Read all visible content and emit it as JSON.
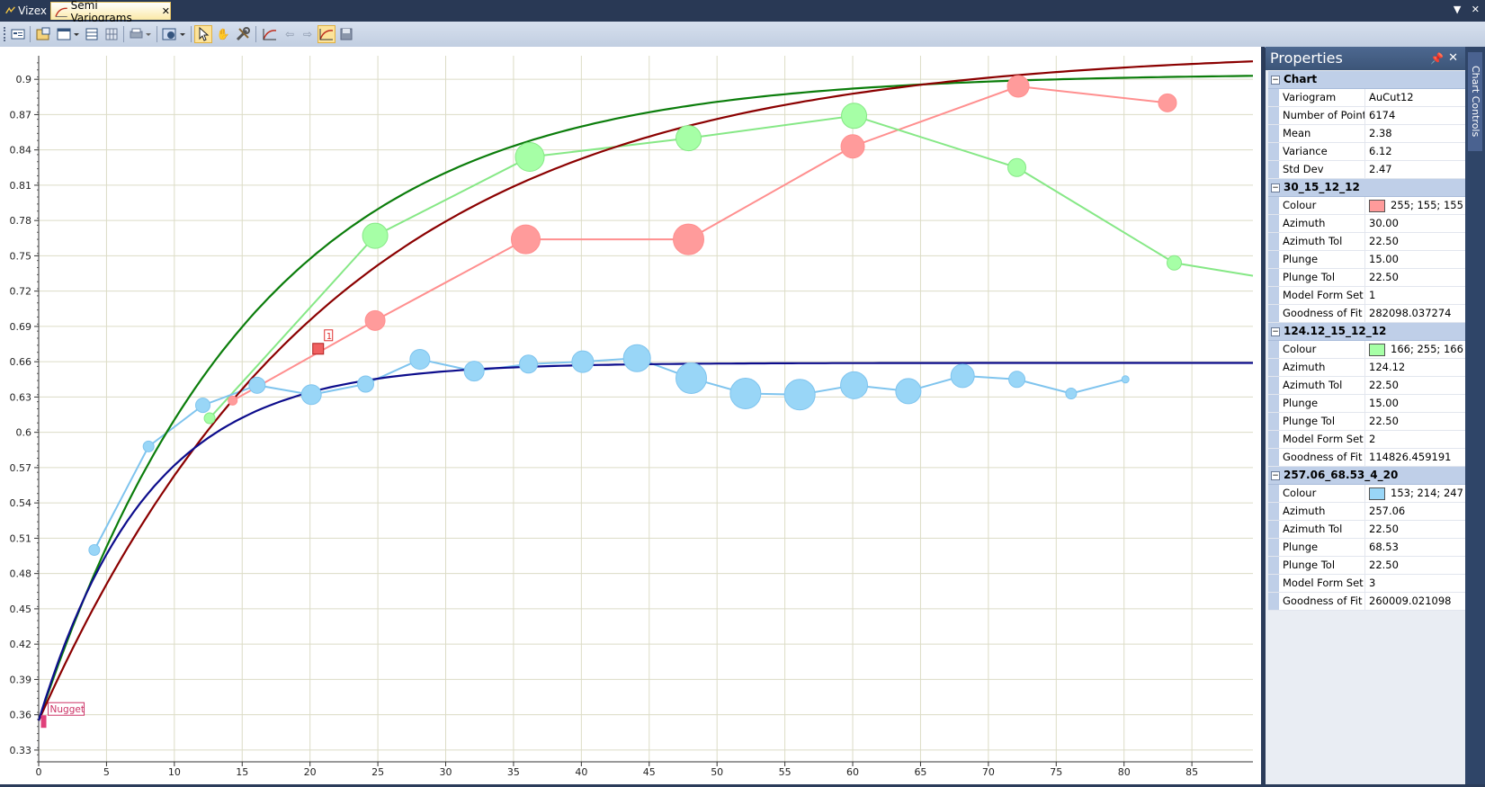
{
  "tabs": [
    {
      "label": "Vizex",
      "icon": "vizex-icon"
    },
    {
      "label": "Semi Variograms",
      "icon": "variogram-icon",
      "active": true
    }
  ],
  "toolbar": {
    "tools": [
      "properties-icon",
      "layout-icon",
      "list-icon",
      "grid-icon",
      "print-icon",
      "export-icon",
      "select-pointer-icon",
      "pan-hand-icon",
      "tools-icon",
      "variogram-curve-icon",
      "back-arrow-icon",
      "forward-arrow-icon",
      "model-fit-icon",
      "save-icon"
    ]
  },
  "properties": {
    "title": "Properties",
    "side_tab": "Chart Controls",
    "sections": [
      {
        "name": "Chart",
        "rows": [
          {
            "label": "Variogram",
            "value": "AuCut12"
          },
          {
            "label": "Number of Points",
            "value": "6174"
          },
          {
            "label": "Mean",
            "value": "2.38"
          },
          {
            "label": "Variance",
            "value": "6.12"
          },
          {
            "label": "Std Dev",
            "value": "2.47"
          }
        ]
      },
      {
        "name": "30_15_12_12",
        "rows": [
          {
            "label": "Colour",
            "value": "255; 155; 155",
            "swatch": "#ff9b9b"
          },
          {
            "label": "Azimuth",
            "value": "30.00"
          },
          {
            "label": "Azimuth Tol",
            "value": "22.50"
          },
          {
            "label": "Plunge",
            "value": "15.00"
          },
          {
            "label": "Plunge Tol",
            "value": "22.50"
          },
          {
            "label": "Model Form Set T",
            "value": "1"
          },
          {
            "label": "Goodness of Fit (I",
            "value": "282098.037274"
          }
        ]
      },
      {
        "name": "124.12_15_12_12",
        "rows": [
          {
            "label": "Colour",
            "value": "166; 255; 166",
            "swatch": "#a6ffa6"
          },
          {
            "label": "Azimuth",
            "value": "124.12"
          },
          {
            "label": "Azimuth Tol",
            "value": "22.50"
          },
          {
            "label": "Plunge",
            "value": "15.00"
          },
          {
            "label": "Plunge Tol",
            "value": "22.50"
          },
          {
            "label": "Model Form Set T",
            "value": "2"
          },
          {
            "label": "Goodness of Fit (I",
            "value": "114826.459191"
          }
        ]
      },
      {
        "name": "257.06_68.53_4_20",
        "rows": [
          {
            "label": "Colour",
            "value": "153; 214; 247",
            "swatch": "#99d6f7"
          },
          {
            "label": "Azimuth",
            "value": "257.06"
          },
          {
            "label": "Azimuth Tol",
            "value": "22.50"
          },
          {
            "label": "Plunge",
            "value": "68.53"
          },
          {
            "label": "Plunge Tol",
            "value": "22.50"
          },
          {
            "label": "Model Form Set T",
            "value": "3"
          },
          {
            "label": "Goodness of Fit (I",
            "value": "260009.021098"
          }
        ]
      }
    ]
  },
  "chart_data": {
    "type": "scatter",
    "xlim": [
      0,
      89.5
    ],
    "ylim": [
      0.32,
      0.92
    ],
    "x_ticks": [
      0,
      5,
      10,
      15,
      20,
      25,
      30,
      35,
      40,
      45,
      50,
      55,
      60,
      65,
      70,
      75,
      80,
      85
    ],
    "y_ticks": [
      "0.33",
      "0.36",
      "0.39",
      "0.42",
      "0.45",
      "0.48",
      "0.51",
      "0.54",
      "0.57",
      "0.6",
      "0.63",
      "0.66",
      "0.69",
      "0.72",
      "0.75",
      "0.78",
      "0.81",
      "0.84",
      "0.87",
      "0.9"
    ],
    "grid": true,
    "series": [
      {
        "color": "#ff9b9b",
        "stroke": "#ff8f8f",
        "points": [
          [
            14.3,
            0.627,
            5
          ],
          [
            24.8,
            0.695,
            11
          ],
          [
            35.9,
            0.764,
            16
          ],
          [
            47.9,
            0.764,
            17
          ],
          [
            60,
            0.843,
            13
          ],
          [
            72.2,
            0.894,
            12
          ],
          [
            83.2,
            0.88,
            10
          ]
        ]
      },
      {
        "color": "#a6ffa6",
        "stroke": "#86e886",
        "points": [
          [
            12.6,
            0.612,
            6
          ],
          [
            24.8,
            0.767,
            14
          ],
          [
            36.2,
            0.834,
            16
          ],
          [
            47.9,
            0.85,
            14
          ],
          [
            60.1,
            0.869,
            14
          ],
          [
            72.1,
            0.825,
            10
          ],
          [
            83.7,
            0.744,
            8
          ],
          [
            89.5,
            0.733,
            0
          ]
        ]
      },
      {
        "color": "#99d6f7",
        "stroke": "#7fc4ee",
        "points": [
          [
            4.1,
            0.5,
            6
          ],
          [
            8.1,
            0.588,
            6
          ],
          [
            12.1,
            0.623,
            8
          ],
          [
            16.1,
            0.64,
            9
          ],
          [
            20.1,
            0.632,
            11
          ],
          [
            24.1,
            0.641,
            9
          ],
          [
            28.1,
            0.662,
            11
          ],
          [
            32.1,
            0.652,
            11
          ],
          [
            36.1,
            0.658,
            10
          ],
          [
            40.1,
            0.66,
            12
          ],
          [
            44.1,
            0.663,
            15
          ],
          [
            48.1,
            0.646,
            17
          ],
          [
            52.1,
            0.633,
            17
          ],
          [
            56.1,
            0.632,
            17
          ],
          [
            60.1,
            0.64,
            15
          ],
          [
            64.1,
            0.635,
            14
          ],
          [
            68.1,
            0.648,
            13
          ],
          [
            72.1,
            0.645,
            9
          ],
          [
            76.1,
            0.633,
            6
          ],
          [
            80.1,
            0.645,
            4
          ]
        ]
      }
    ],
    "models": [
      {
        "color": "#0b7d0b",
        "nugget": 0.355,
        "sill": 0.905,
        "range": 48
      },
      {
        "color": "#8b0000",
        "nugget": 0.355,
        "sill": 0.925,
        "range": 66
      },
      {
        "color": "#0d0d8c",
        "nugget": 0.355,
        "sill": 0.659,
        "range": 24
      }
    ],
    "annotations": [
      {
        "text": "Nugget",
        "x": 0.3,
        "y": 0.355,
        "color": "#cc3366"
      },
      {
        "text": "1",
        "x": 20.6,
        "y": 0.671,
        "color": "#e03030"
      }
    ]
  }
}
